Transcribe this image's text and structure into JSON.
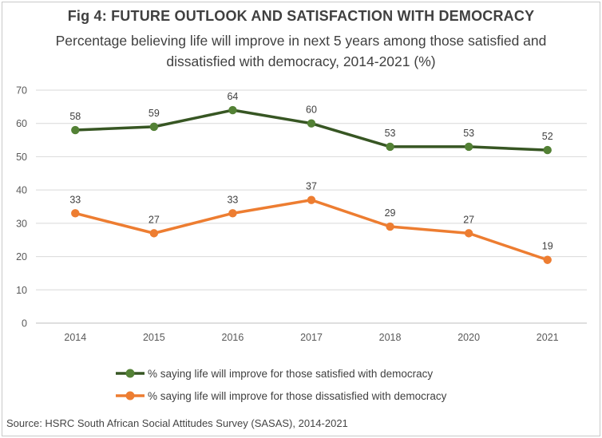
{
  "chart": {
    "title": "Fig 4: FUTURE OUTLOOK AND SATISFACTION WITH DEMOCRACY",
    "subtitle": "Percentage believing life will improve in next 5 years among those satisfied and dissatisfied with democracy, 2014-2021 (%)",
    "source": "Source: HSRC South African Social Attitudes Survey (SASAS), 2014-2021"
  },
  "chart_data": {
    "type": "line",
    "title": "Fig 4: FUTURE OUTLOOK AND SATISFACTION WITH DEMOCRACY",
    "subtitle": "Percentage believing life will improve in next 5 years among those satisfied and dissatisfied with democracy, 2014-2021 (%)",
    "categories": [
      "2014",
      "2015",
      "2016",
      "2017",
      "2018",
      "2020",
      "2021"
    ],
    "series": [
      {
        "name": "% saying life will improve for those satisfied with democracy",
        "values": [
          58,
          59,
          64,
          60,
          53,
          53,
          52
        ],
        "line_color": "#375623",
        "marker_color": "#538135"
      },
      {
        "name": "% saying life will improve for those dissatisfied with democracy",
        "values": [
          33,
          27,
          33,
          37,
          29,
          27,
          19
        ],
        "line_color": "#ED7D31",
        "marker_color": "#ED7D31"
      }
    ],
    "xlabel": "",
    "ylabel": "",
    "ylim": [
      0,
      70
    ],
    "yticks": [
      0,
      10,
      20,
      30,
      40,
      50,
      60,
      70
    ],
    "grid": true,
    "gridline_color": "#d9d9d9",
    "axis_line_color": "#bfbfbf",
    "legend_position": "bottom",
    "data_labels": true
  }
}
